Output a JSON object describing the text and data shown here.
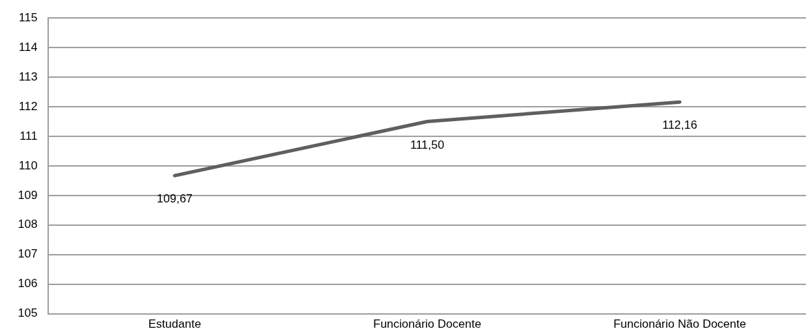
{
  "chart_data": {
    "type": "line",
    "categories": [
      "Estudante",
      "Funcionário Docente",
      "Funcionário Não Docente"
    ],
    "series": [
      {
        "color": "#5f5f5f",
        "values": [
          109.67,
          111.5,
          112.16
        ],
        "value_labels": [
          "109,67",
          "111,50",
          "112,16"
        ]
      }
    ],
    "ylim": [
      105,
      115
    ],
    "yticks": [
      105,
      106,
      107,
      108,
      109,
      110,
      111,
      112,
      113,
      114,
      115
    ],
    "grid": "y",
    "marker": "none"
  }
}
